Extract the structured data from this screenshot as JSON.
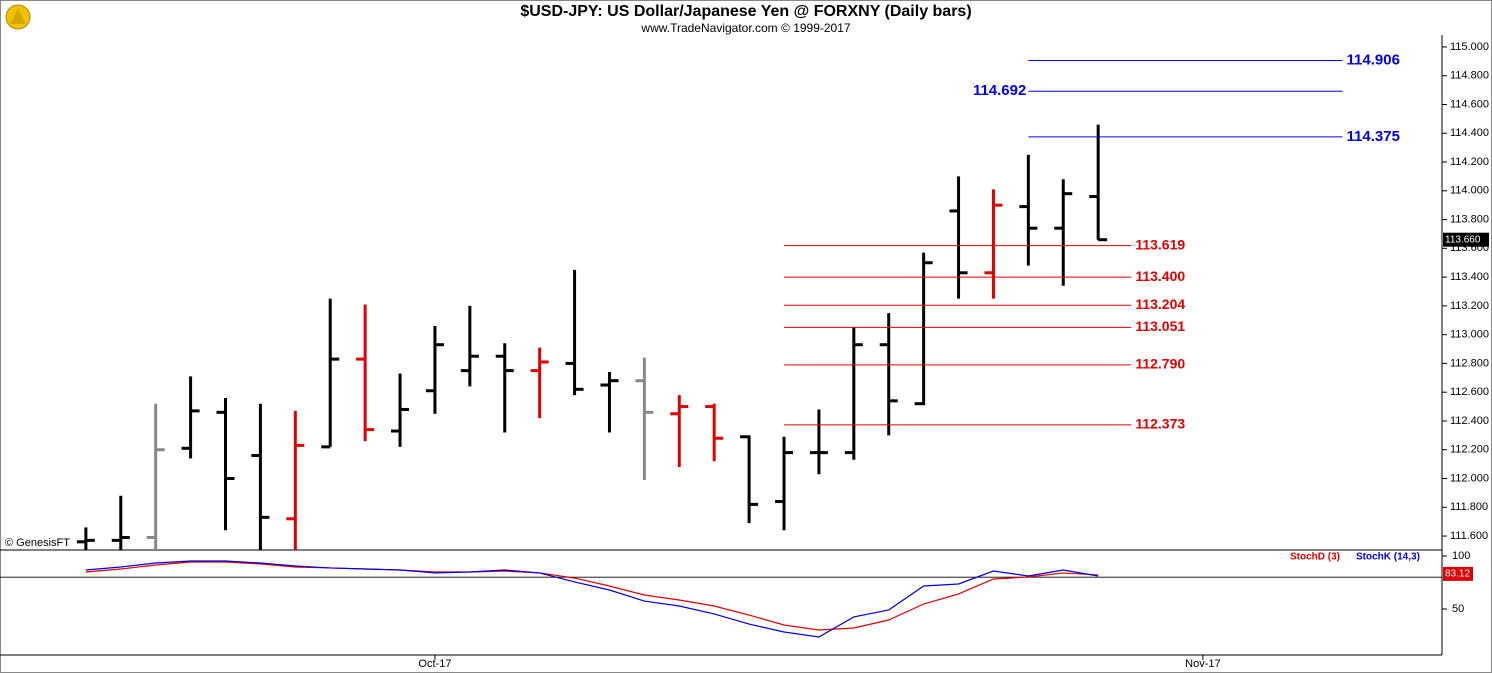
{
  "chart_data": [
    {
      "type": "ohlc",
      "title": "$USD-JPY:  US Dollar/Japanese Yen @ FORXNY  (Daily bars)",
      "subtitle": "www.TradeNavigator.com © 1999-2017",
      "watermark": "© GenesisFT",
      "x": [
        0,
        1,
        2,
        3,
        4,
        5,
        6,
        7,
        8,
        9,
        10,
        11,
        12,
        13,
        14,
        15,
        16,
        17,
        18,
        19,
        20,
        21,
        22,
        23,
        24,
        25,
        26,
        27,
        28,
        29
      ],
      "open": [
        111.56,
        111.57,
        111.59,
        112.21,
        112.46,
        112.16,
        111.72,
        112.22,
        112.83,
        112.33,
        112.61,
        112.75,
        112.85,
        112.75,
        112.8,
        112.65,
        112.68,
        112.45,
        112.5,
        112.29,
        111.84,
        112.18,
        112.18,
        112.93,
        112.52,
        113.86,
        113.43,
        113.89,
        113.74,
        113.96
      ],
      "high": [
        111.66,
        111.88,
        112.52,
        112.71,
        112.56,
        112.52,
        112.47,
        113.25,
        113.21,
        112.73,
        113.06,
        113.2,
        112.94,
        112.91,
        113.45,
        112.74,
        112.84,
        112.58,
        112.52,
        112.3,
        112.29,
        112.48,
        113.05,
        113.15,
        113.57,
        114.1,
        114.01,
        114.25,
        114.08,
        114.46
      ],
      "low": [
        111.49,
        111.5,
        111.5,
        112.14,
        111.64,
        111.5,
        111.5,
        112.22,
        112.26,
        112.22,
        112.45,
        112.64,
        112.32,
        112.42,
        112.58,
        112.32,
        111.99,
        112.08,
        112.12,
        111.69,
        111.64,
        112.03,
        112.13,
        112.3,
        112.51,
        113.25,
        113.25,
        113.48,
        113.34,
        113.66
      ],
      "close": [
        111.57,
        111.59,
        112.2,
        112.47,
        112.0,
        111.73,
        112.23,
        112.83,
        112.34,
        112.48,
        112.93,
        112.85,
        112.75,
        112.81,
        112.62,
        112.68,
        112.46,
        112.5,
        112.28,
        111.82,
        112.18,
        112.18,
        112.93,
        112.54,
        113.5,
        113.43,
        113.9,
        113.74,
        113.98,
        113.66
      ],
      "colors": [
        "#000",
        "#000",
        "#888",
        "#000",
        "#000",
        "#000",
        "#e00000",
        "#000",
        "#e00000",
        "#000",
        "#000",
        "#000",
        "#000",
        "#e00000",
        "#000",
        "#000",
        "#888",
        "#e00000",
        "#e00000",
        "#000",
        "#000",
        "#000",
        "#000",
        "#000",
        "#000",
        "#000",
        "#e00000",
        "#000",
        "#000",
        "#000"
      ],
      "last_label": "113.660",
      "levels": [
        {
          "value": 114.906,
          "color": "#0000e0"
        },
        {
          "value": 114.692,
          "color": "#0000e0"
        },
        {
          "value": 114.375,
          "color": "#0000e0"
        },
        {
          "value": 113.619,
          "color": "#e00000"
        },
        {
          "value": 113.4,
          "label": "113.400",
          "color": "#e00000"
        },
        {
          "value": 113.204,
          "color": "#e00000"
        },
        {
          "value": 113.051,
          "color": "#e00000"
        },
        {
          "value": 112.79,
          "label": "112.790",
          "color": "#e00000"
        },
        {
          "value": 112.373,
          "color": "#e00000"
        }
      ],
      "xlim": [
        -2.46,
        38.85
      ],
      "xticks": [
        {
          "value": 10,
          "label": "Oct-17"
        },
        {
          "value": 32,
          "label": "Nov-17"
        }
      ],
      "ylim": [
        111.503,
        115.083
      ],
      "yticks": [
        {
          "value": 111.6,
          "label": "111.600"
        },
        {
          "value": 111.8,
          "label": "111.800"
        },
        {
          "value": 112.0,
          "label": "112.000"
        },
        {
          "value": 112.2,
          "label": "112.200"
        },
        {
          "value": 112.4,
          "label": "112.400"
        },
        {
          "value": 112.6,
          "label": "112.600"
        },
        {
          "value": 112.8,
          "label": "112.800"
        },
        {
          "value": 113.0,
          "label": "113.000"
        },
        {
          "value": 113.2,
          "label": "113.200"
        },
        {
          "value": 113.4,
          "label": "113.400"
        },
        {
          "value": 113.6,
          "label": "113.600"
        },
        {
          "value": 113.8,
          "label": "113.800"
        },
        {
          "value": 114.0,
          "label": "114.000"
        },
        {
          "value": 114.2,
          "label": "114.200"
        },
        {
          "value": 114.4,
          "label": "114.400"
        },
        {
          "value": 114.6,
          "label": "114.600"
        },
        {
          "value": 114.8,
          "label": "114.800"
        },
        {
          "value": 115.0,
          "label": "115.000"
        }
      ]
    },
    {
      "type": "line",
      "series": [
        {
          "name": "StochD (3)",
          "color": "#e00000",
          "last_value": 83.12,
          "values": [
            84.9,
            87.7,
            91.5,
            94.3,
            94.3,
            92.5,
            89.6,
            88.7,
            87.7,
            86.8,
            84.9,
            84.9,
            85.8,
            84.0,
            79.2,
            71.7,
            63.2,
            58.5,
            52.8,
            44.3,
            34.9,
            30.2,
            32.1,
            39.6,
            54.7,
            64.2,
            78.3,
            80.2,
            84.0,
            82.1
          ]
        },
        {
          "name": "StochK (14,3)",
          "color": "#0000e0",
          "values": [
            86.8,
            89.6,
            93.4,
            95.3,
            95.3,
            93.4,
            90.6,
            88.7,
            87.7,
            86.8,
            84.0,
            84.9,
            86.8,
            84.0,
            75.5,
            67.9,
            57.5,
            52.8,
            45.3,
            35.8,
            28.3,
            23.6,
            42.5,
            49.1,
            71.7,
            73.6,
            85.8,
            81.1,
            86.8,
            81.1
          ]
        }
      ],
      "reference_line": 80,
      "ylim": [
        6.6,
        104.7
      ],
      "yticks": [
        100,
        50
      ]
    }
  ]
}
